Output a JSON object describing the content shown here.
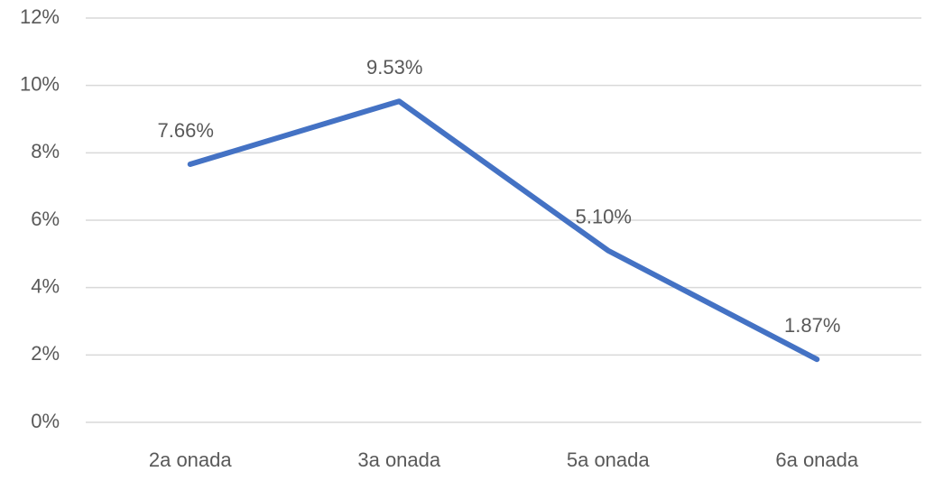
{
  "chart_data": {
    "type": "line",
    "categories": [
      "2a onada",
      "3a onada",
      "5a onada",
      "6a onada"
    ],
    "values": [
      7.66,
      9.53,
      5.1,
      1.87
    ],
    "value_labels": [
      "7.66%",
      "9.53%",
      "5.10%",
      "1.87%"
    ],
    "color": "#4472c4",
    "ylim": [
      0,
      12
    ],
    "yticks": [
      {
        "value": 0,
        "label": "0%"
      },
      {
        "value": 2,
        "label": "2%"
      },
      {
        "value": 4,
        "label": "4%"
      },
      {
        "value": 6,
        "label": "6%"
      },
      {
        "value": 8,
        "label": "8%"
      },
      {
        "value": 10,
        "label": "10%"
      },
      {
        "value": 12,
        "label": "12%"
      }
    ],
    "grid": true
  }
}
